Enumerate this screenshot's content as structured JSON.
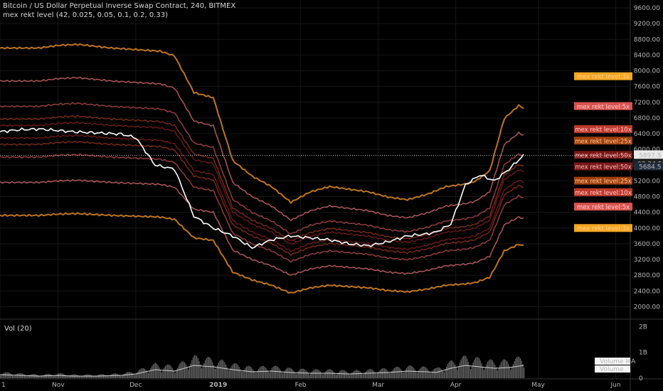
{
  "header": {
    "symbol": "Bitcoin / US Dollar Perpetual Inverse Swap Contract, 240, BITMEX",
    "indicator": "mex rekt level (42, 0.025, 0.05, 0.1, 0.2, 0.33)"
  },
  "volume_pane": {
    "title": "Vol (20)",
    "legend": [
      "Volume MA",
      "Volume"
    ]
  },
  "price_readouts": {
    "last_price": "5897.5",
    "countdown": "02:24:50",
    "reference_price": "5684.5"
  },
  "colors": {
    "background": "#000000",
    "price_line": "#ffffff",
    "level_3x": "#c87a1e",
    "level_5x": "#b85c5c",
    "level_10x": "#9a3f3f",
    "level_25x": "#7a2a14",
    "level_50x": "#6a1818",
    "volume": "#8a8a8a"
  },
  "chart_data": {
    "type": "line",
    "title": "Bitcoin / US Dollar Perpetual Inverse Swap Contract, 240, BITMEX",
    "x_ticks": [
      "1",
      "Nov",
      "Dec",
      "2019",
      "Feb",
      "Mar",
      "Apr",
      "May",
      "Jun"
    ],
    "y_ticks": [
      2000,
      2400,
      2800,
      3200,
      3600,
      4000,
      4400,
      4800,
      5200,
      5600,
      6000,
      6400,
      6800,
      7200,
      7600,
      8000,
      8400,
      8800,
      9200,
      9600
    ],
    "ylim": [
      1700,
      9800
    ],
    "volume_ticks": [
      "2B",
      "1B",
      "0"
    ],
    "x_index": [
      0,
      4,
      8,
      12,
      15,
      20,
      25,
      28,
      32,
      36,
      40,
      44,
      48,
      52,
      56,
      60,
      64,
      68,
      72,
      76,
      80,
      84,
      88,
      90,
      93,
      96,
      99,
      102,
      105,
      108
    ],
    "price": [
      6450,
      6500,
      6520,
      6480,
      6450,
      6420,
      6390,
      6300,
      5600,
      5500,
      4300,
      4000,
      3800,
      3500,
      3700,
      3800,
      3750,
      3700,
      3600,
      3550,
      3650,
      3800,
      3850,
      3900,
      4100,
      5100,
      5350,
      5200,
      5500,
      5850
    ],
    "series": [
      {
        "name": "mex rekt level:3x",
        "factor": 1.33
      },
      {
        "name": "mex rekt level:5x",
        "factor": 1.2
      },
      {
        "name": "mex rekt level:10x",
        "factor": 1.1
      },
      {
        "name": "mex rekt level:25x",
        "factor": 1.05
      },
      {
        "name": "mex rekt level:50x",
        "factor": 1.025
      },
      {
        "name": "mex rekt level:50x",
        "factor": 0.975
      },
      {
        "name": "mex rekt level:25x",
        "factor": 0.95
      },
      {
        "name": "mex rekt level:10x",
        "factor": 0.9
      },
      {
        "name": "mex rekt level:5x",
        "factor": 0.8
      },
      {
        "name": "mex rekt level:3x",
        "factor": 0.67
      }
    ],
    "volume": [
      0.25,
      0.2,
      0.15,
      0.2,
      0.15,
      0.15,
      0.2,
      0.3,
      0.6,
      0.5,
      0.9,
      0.8,
      0.6,
      0.45,
      0.5,
      0.4,
      0.35,
      0.35,
      0.3,
      0.35,
      0.4,
      0.5,
      0.45,
      0.4,
      0.7,
      0.9,
      0.8,
      0.7,
      0.75,
      0.9
    ],
    "ylim_volume": [
      0,
      2.2
    ]
  }
}
